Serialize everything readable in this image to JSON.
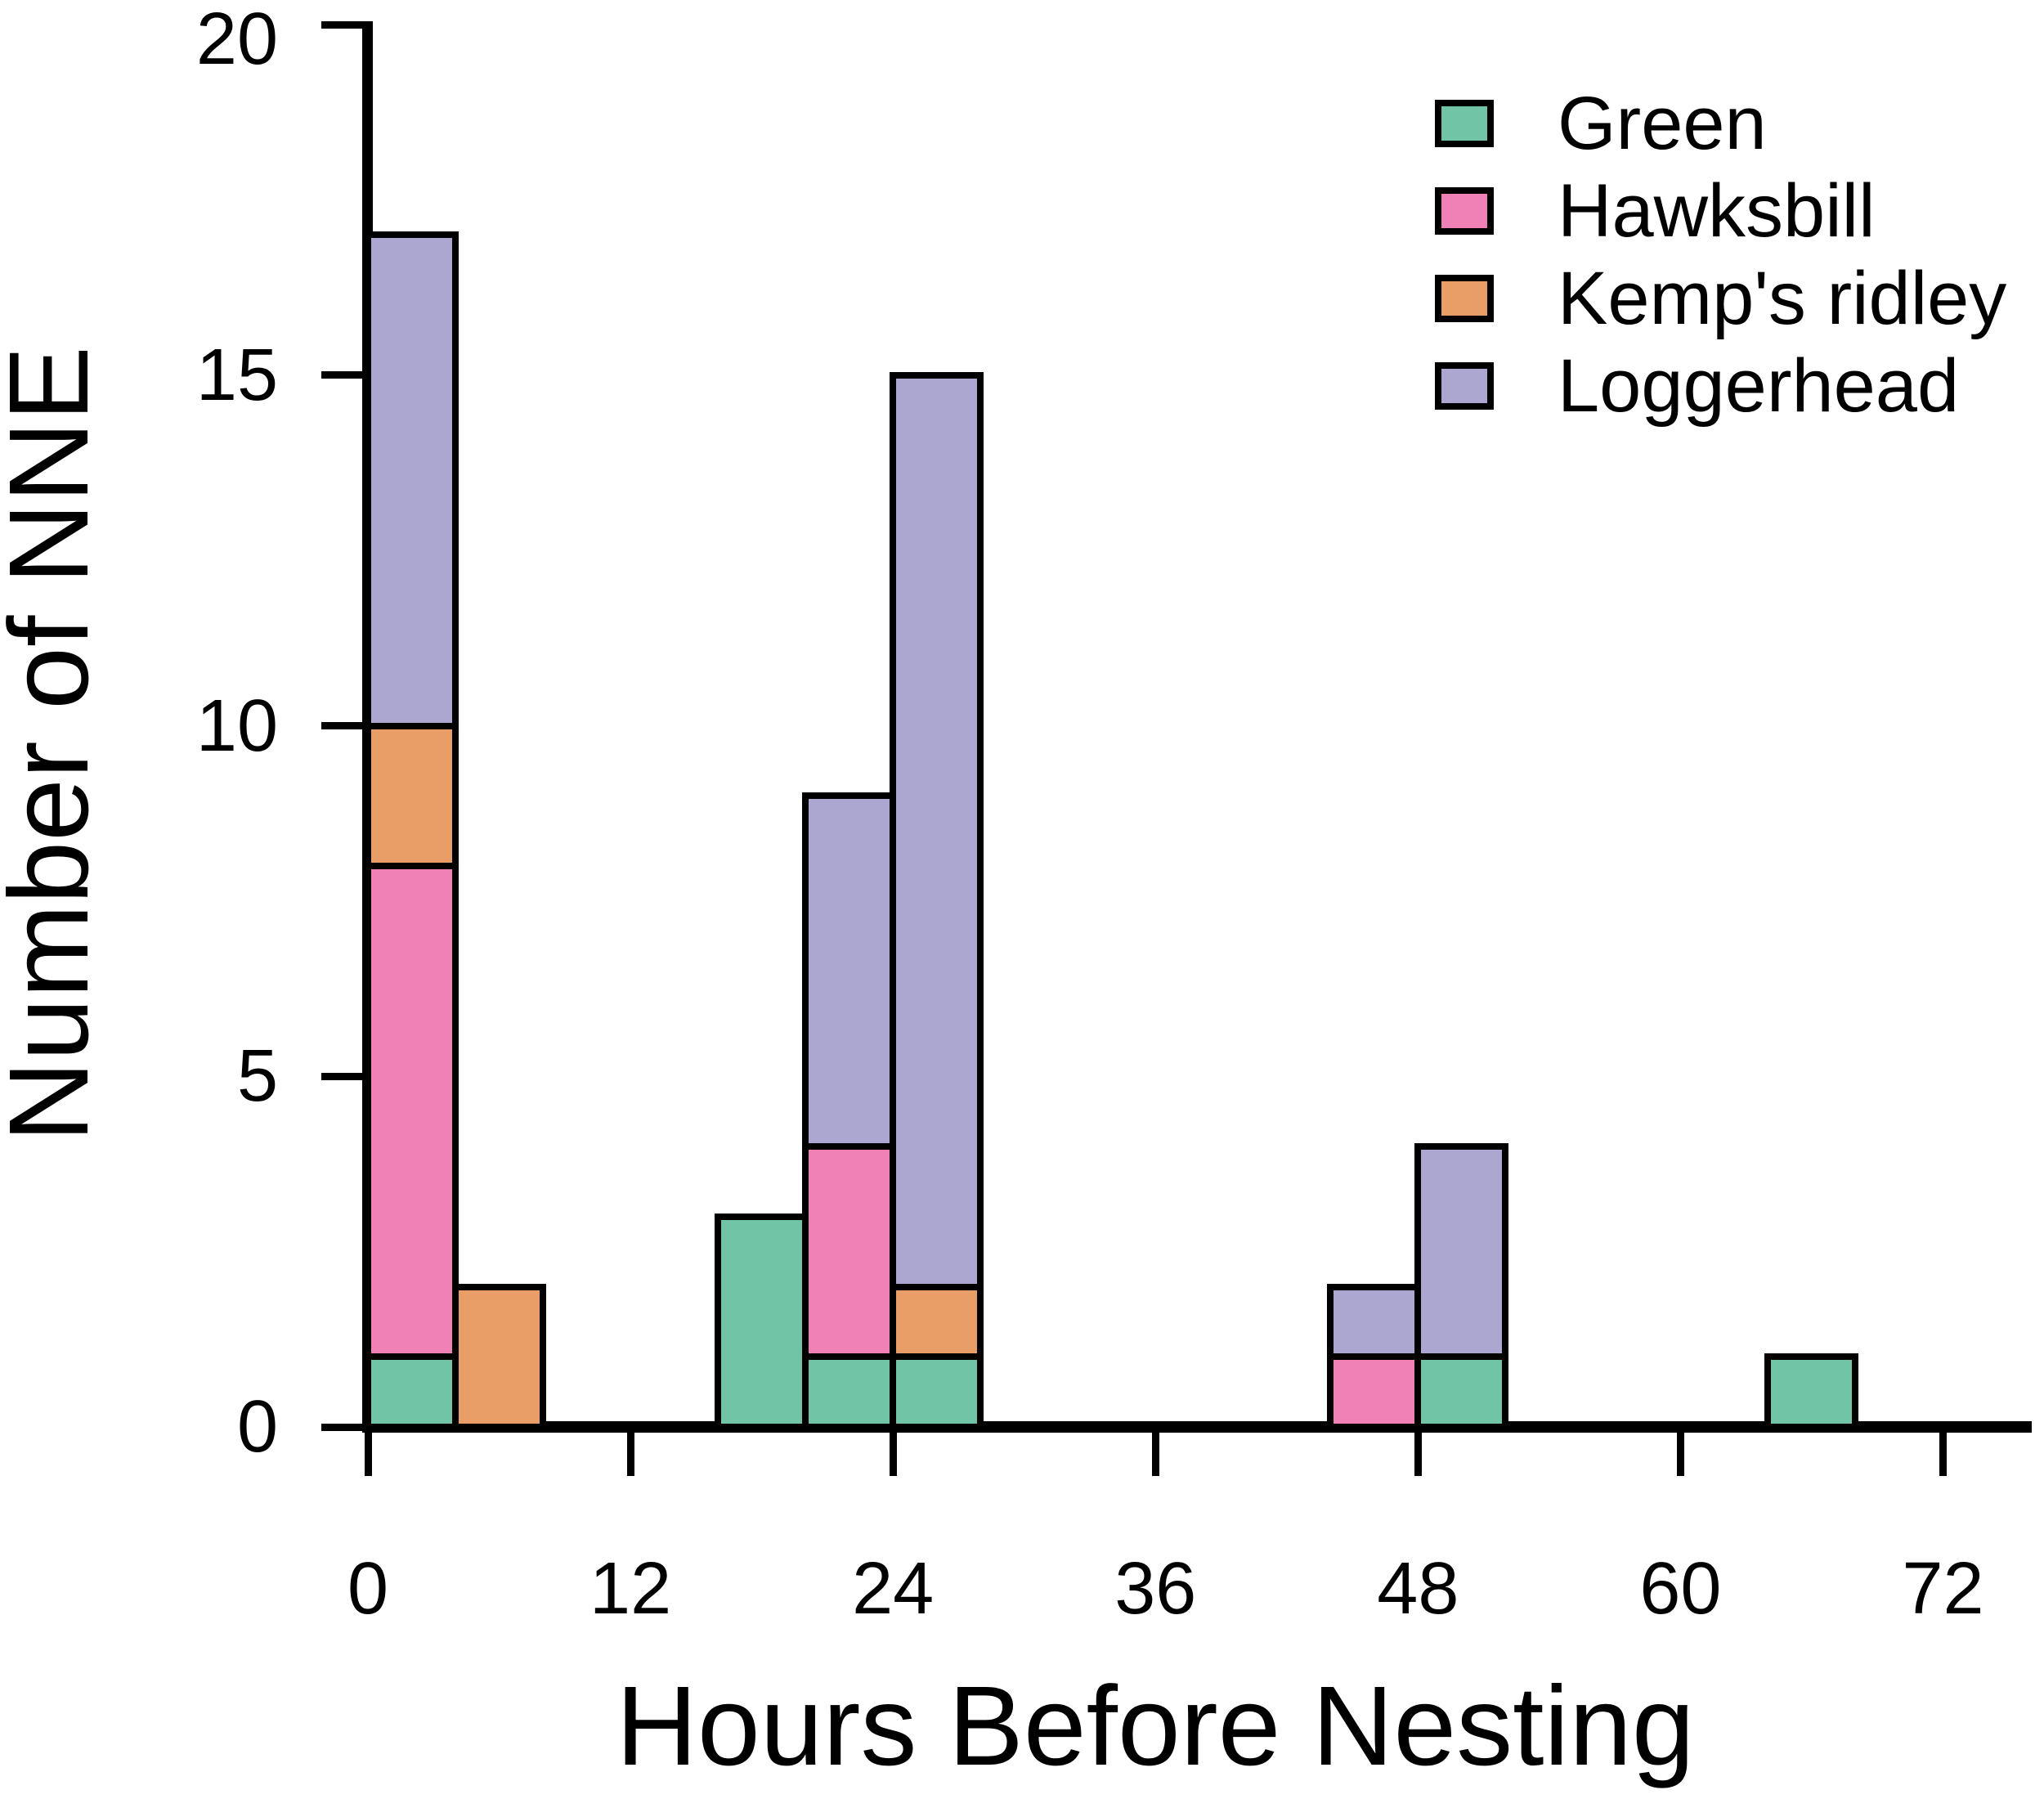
{
  "figure": {
    "background": "#ffffff",
    "axis_color": "#000000",
    "ylabel": "Number of NNE",
    "xlabel": "Hours Before Nesting",
    "y_ticks": [
      0,
      5,
      10,
      15,
      20
    ],
    "x_ticks": [
      0,
      12,
      24,
      36,
      48,
      60,
      72
    ]
  },
  "legend": {
    "position": "top-right",
    "entries": [
      {
        "label": "Green",
        "color": "#72C4A6"
      },
      {
        "label": "Hawksbill",
        "color": "#EF81B6"
      },
      {
        "label": "Kemp's ridley",
        "color": "#E89E66"
      },
      {
        "label": "Loggerhead",
        "color": "#ABA7D1"
      }
    ]
  },
  "chart_data": {
    "type": "bar",
    "stacked": true,
    "title": "",
    "xlabel": "Hours Before Nesting",
    "ylabel": "Number of NNE",
    "xlim": [
      0,
      76
    ],
    "ylim": [
      0,
      20
    ],
    "grid": false,
    "legend_position": "top-right",
    "bin_width_hours": 4,
    "series_order": [
      "Green",
      "Hawksbill",
      "Kemp's ridley",
      "Loggerhead"
    ],
    "colors": {
      "Green": "#72C4A6",
      "Hawksbill": "#EF81B6",
      "Kemp's ridley": "#E89E66",
      "Loggerhead": "#ABA7D1"
    },
    "bars": [
      {
        "start_hour": 0,
        "end_hour": 4,
        "total": 17,
        "segments": [
          {
            "species": "Green",
            "value": 1
          },
          {
            "species": "Hawksbill",
            "value": 7
          },
          {
            "species": "Kemp's ridley",
            "value": 2
          },
          {
            "species": "Loggerhead",
            "value": 7
          }
        ]
      },
      {
        "start_hour": 4,
        "end_hour": 8,
        "total": 2,
        "segments": [
          {
            "species": "Kemp's ridley",
            "value": 2
          }
        ]
      },
      {
        "start_hour": 16,
        "end_hour": 20,
        "total": 3,
        "segments": [
          {
            "species": "Green",
            "value": 3
          }
        ]
      },
      {
        "start_hour": 20,
        "end_hour": 24,
        "total": 9,
        "segments": [
          {
            "species": "Green",
            "value": 1
          },
          {
            "species": "Hawksbill",
            "value": 3
          },
          {
            "species": "Loggerhead",
            "value": 5
          }
        ]
      },
      {
        "start_hour": 24,
        "end_hour": 28,
        "total": 15,
        "segments": [
          {
            "species": "Green",
            "value": 1
          },
          {
            "species": "Kemp's ridley",
            "value": 1
          },
          {
            "species": "Loggerhead",
            "value": 13
          }
        ]
      },
      {
        "start_hour": 44,
        "end_hour": 48,
        "total": 2,
        "segments": [
          {
            "species": "Hawksbill",
            "value": 1
          },
          {
            "species": "Loggerhead",
            "value": 1
          }
        ]
      },
      {
        "start_hour": 48,
        "end_hour": 52,
        "total": 4,
        "segments": [
          {
            "species": "Green",
            "value": 1
          },
          {
            "species": "Loggerhead",
            "value": 3
          }
        ]
      },
      {
        "start_hour": 64,
        "end_hour": 68,
        "total": 1,
        "segments": [
          {
            "species": "Green",
            "value": 1
          }
        ]
      }
    ],
    "series_totals": {
      "Green": 8,
      "Hawksbill": 11,
      "Kemp's ridley": 5,
      "Loggerhead": 29
    }
  }
}
